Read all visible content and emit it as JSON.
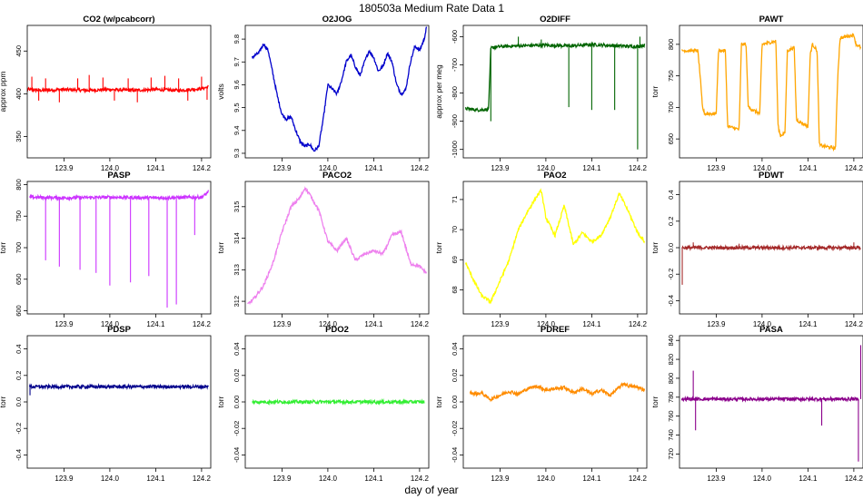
{
  "page": {
    "title": "180503a   Medium Rate Data 1",
    "xlabel": "day of year"
  },
  "chart_data": [
    {
      "type": "line",
      "title": "CO2 (w/pcabcorr)",
      "ylabel": "approx ppm",
      "color": "#ff0000",
      "xlim": [
        123.82,
        124.22
      ],
      "ylim": [
        325,
        480
      ],
      "xticks": [
        "123.9",
        "124.0",
        "124.1",
        "124.2"
      ],
      "yticks": [
        "350",
        "400",
        "450"
      ],
      "x": [
        123.82,
        123.85,
        123.9,
        123.95,
        124.0,
        124.05,
        124.1,
        124.15,
        124.2,
        124.215
      ],
      "y": [
        405,
        404,
        405,
        404,
        405,
        404,
        405,
        404,
        406,
        408
      ],
      "spikes": [
        [
          123.83,
          420
        ],
        [
          123.845,
          392
        ],
        [
          123.86,
          418
        ],
        [
          123.89,
          390
        ],
        [
          123.93,
          418
        ],
        [
          123.955,
          422
        ],
        [
          123.985,
          419
        ],
        [
          124.01,
          392
        ],
        [
          124.04,
          418
        ],
        [
          124.06,
          390
        ],
        [
          124.09,
          419
        ],
        [
          124.12,
          421
        ],
        [
          124.15,
          418
        ],
        [
          124.17,
          392
        ],
        [
          124.2,
          420
        ],
        [
          124.212,
          393
        ]
      ]
    },
    {
      "type": "line",
      "title": "O2JOG",
      "ylabel": "volts",
      "color": "#0000cc",
      "xlim": [
        123.82,
        124.22
      ],
      "ylim": [
        9.28,
        9.86
      ],
      "xticks": [
        "123.9",
        "124.0",
        "124.1",
        "124.2"
      ],
      "yticks": [
        "9.3",
        "9.4",
        "9.5",
        "9.6",
        "9.7",
        "9.8"
      ],
      "x": [
        123.835,
        123.85,
        123.86,
        123.87,
        123.88,
        123.89,
        123.9,
        123.91,
        123.92,
        123.93,
        123.94,
        123.95,
        123.96,
        123.97,
        123.98,
        123.99,
        124.0,
        124.01,
        124.02,
        124.03,
        124.04,
        124.05,
        124.06,
        124.07,
        124.08,
        124.09,
        124.1,
        124.11,
        124.12,
        124.13,
        124.14,
        124.15,
        124.16,
        124.17,
        124.18,
        124.19,
        124.2,
        124.21,
        124.215
      ],
      "y": [
        9.72,
        9.74,
        9.78,
        9.75,
        9.65,
        9.55,
        9.47,
        9.45,
        9.46,
        9.4,
        9.35,
        9.33,
        9.34,
        9.31,
        9.33,
        9.45,
        9.6,
        9.58,
        9.56,
        9.62,
        9.7,
        9.73,
        9.68,
        9.64,
        9.7,
        9.75,
        9.72,
        9.66,
        9.68,
        9.74,
        9.7,
        9.6,
        9.56,
        9.58,
        9.7,
        9.77,
        9.75,
        9.8,
        9.85
      ]
    },
    {
      "type": "line",
      "title": "O2DIFF",
      "ylabel": "approx per meg",
      "color": "#006400",
      "xlim": [
        123.82,
        124.22
      ],
      "ylim": [
        -1030,
        -560
      ],
      "xticks": [
        "123.9",
        "124.0",
        "124.1",
        "124.2"
      ],
      "yticks": [
        "-1000",
        "-900",
        "-800",
        "-700",
        "-600"
      ],
      "x": [
        123.825,
        123.85,
        123.875,
        123.88,
        123.9,
        123.95,
        124.0,
        124.05,
        124.1,
        124.15,
        124.2,
        124.215
      ],
      "y": [
        -855,
        -860,
        -858,
        -640,
        -635,
        -632,
        -630,
        -633,
        -628,
        -632,
        -635,
        -630
      ],
      "spikes": [
        [
          123.88,
          -900
        ],
        [
          123.94,
          -600
        ],
        [
          123.99,
          -610
        ],
        [
          124.05,
          -850
        ],
        [
          124.1,
          -860
        ],
        [
          124.15,
          -860
        ],
        [
          124.2,
          -1000
        ],
        [
          124.205,
          -600
        ]
      ]
    },
    {
      "type": "line",
      "title": "PAWT",
      "ylabel": "torr",
      "color": "#ffa500",
      "xlim": [
        123.82,
        124.22
      ],
      "ylim": [
        620,
        830
      ],
      "xticks": [
        "123.9",
        "124.0",
        "124.1",
        "124.2"
      ],
      "yticks": [
        "650",
        "700",
        "750",
        "800"
      ],
      "x": [
        123.825,
        123.86,
        123.865,
        123.87,
        123.875,
        123.9,
        123.905,
        123.92,
        123.925,
        123.95,
        123.955,
        123.965,
        123.97,
        123.995,
        124.0,
        124.03,
        124.035,
        124.04,
        124.05,
        124.055,
        124.07,
        124.075,
        124.1,
        124.105,
        124.11,
        124.12,
        124.125,
        124.16,
        124.165,
        124.17,
        124.2,
        124.205,
        124.215
      ],
      "y": [
        790,
        790,
        750,
        700,
        690,
        690,
        790,
        790,
        670,
        665,
        800,
        800,
        700,
        690,
        800,
        805,
        670,
        655,
        660,
        790,
        795,
        680,
        670,
        785,
        800,
        790,
        640,
        635,
        750,
        810,
        815,
        800,
        795
      ]
    },
    {
      "type": "line",
      "title": "PASP",
      "ylabel": "torr",
      "color": "#cc33ff",
      "xlim": [
        123.82,
        124.22
      ],
      "ylim": [
        595,
        805
      ],
      "xticks": [
        "123.9",
        "124.0",
        "124.1",
        "124.2"
      ],
      "yticks": [
        "600",
        "650",
        "700",
        "750",
        "800"
      ],
      "x": [
        123.825,
        123.9,
        124.0,
        124.1,
        124.2,
        124.21,
        124.215
      ],
      "y": [
        780,
        779,
        780,
        779,
        780,
        785,
        790
      ],
      "spikes": [
        [
          123.86,
          680
        ],
        [
          123.89,
          670
        ],
        [
          123.935,
          665
        ],
        [
          123.97,
          660
        ],
        [
          124.0,
          640
        ],
        [
          124.045,
          645
        ],
        [
          124.085,
          655
        ],
        [
          124.125,
          605
        ],
        [
          124.145,
          610
        ],
        [
          124.185,
          720
        ]
      ]
    },
    {
      "type": "line",
      "title": "PACO2",
      "ylabel": "torr",
      "color": "#ee82ee",
      "xlim": [
        123.82,
        124.22
      ],
      "ylim": [
        311.6,
        315.8
      ],
      "xticks": [
        "123.9",
        "124.0",
        "124.1",
        "124.2"
      ],
      "yticks": [
        "312",
        "313",
        "314",
        "315"
      ],
      "x": [
        123.825,
        123.84,
        123.86,
        123.88,
        123.9,
        123.92,
        123.94,
        123.95,
        123.96,
        123.98,
        124.0,
        124.02,
        124.04,
        124.06,
        124.08,
        124.1,
        124.12,
        124.14,
        124.16,
        124.18,
        124.2,
        124.215
      ],
      "y": [
        311.9,
        312.1,
        312.5,
        313.2,
        314.2,
        315.0,
        315.3,
        315.6,
        315.4,
        314.9,
        313.9,
        313.6,
        314.0,
        313.3,
        313.5,
        313.6,
        313.5,
        314.1,
        314.2,
        313.2,
        313.1,
        312.9
      ]
    },
    {
      "type": "line",
      "title": "PAO2",
      "ylabel": "torr",
      "color": "#ffff00",
      "xlim": [
        123.82,
        124.22
      ],
      "ylim": [
        67.2,
        71.6
      ],
      "xticks": [
        "123.9",
        "124.0",
        "124.1",
        "124.2"
      ],
      "yticks": [
        "68",
        "69",
        "70",
        "71"
      ],
      "x": [
        123.825,
        123.84,
        123.86,
        123.88,
        123.9,
        123.92,
        123.94,
        123.96,
        123.98,
        123.99,
        124.0,
        124.02,
        124.04,
        124.06,
        124.08,
        124.1,
        124.12,
        124.14,
        124.16,
        124.18,
        124.2,
        124.215
      ],
      "y": [
        68.9,
        68.4,
        67.8,
        67.6,
        68.3,
        69.0,
        70.0,
        70.6,
        71.1,
        71.3,
        70.4,
        69.8,
        70.8,
        69.5,
        69.9,
        69.6,
        69.8,
        70.4,
        71.2,
        70.6,
        69.9,
        69.6
      ]
    },
    {
      "type": "line",
      "title": "PDWT",
      "ylabel": "torr",
      "color": "#a52a2a",
      "xlim": [
        123.82,
        124.22
      ],
      "ylim": [
        -0.5,
        0.5
      ],
      "xticks": [
        "123.9",
        "124.0",
        "124.1",
        "124.2"
      ],
      "yticks": [
        "-0.4",
        "-0.2",
        "0.0",
        "0.2",
        "0.4"
      ],
      "x": [
        123.825,
        124.215
      ],
      "y": [
        0.0,
        0.0
      ],
      "spikes": [
        [
          123.826,
          -0.28
        ],
        [
          123.85,
          0.04
        ],
        [
          123.95,
          0.03
        ],
        [
          124.2,
          0.04
        ]
      ]
    },
    {
      "type": "line",
      "title": "PDSP",
      "ylabel": "torr",
      "color": "#00008b",
      "xlim": [
        123.82,
        124.22
      ],
      "ylim": [
        -0.5,
        0.5
      ],
      "xticks": [
        "123.9",
        "124.0",
        "124.1",
        "124.2"
      ],
      "yticks": [
        "-0.4",
        "-0.2",
        "0.0",
        "0.2",
        "0.4"
      ],
      "x": [
        123.825,
        124.215
      ],
      "y": [
        0.115,
        0.115
      ],
      "spikes": [
        [
          123.826,
          0.05
        ]
      ]
    },
    {
      "type": "line",
      "title": "PDO2",
      "ylabel": "torr",
      "color": "#33ee33",
      "xlim": [
        123.82,
        124.22
      ],
      "ylim": [
        -0.05,
        0.05
      ],
      "xticks": [
        "123.9",
        "124.0",
        "124.1",
        "124.2"
      ],
      "yticks": [
        "-0.04",
        "-0.02",
        "0.00",
        "0.02",
        "0.04"
      ],
      "x": [
        123.835,
        124.21
      ],
      "y": [
        0.0,
        0.0
      ]
    },
    {
      "type": "line",
      "title": "PDREF",
      "ylabel": "torr",
      "color": "#ff8c00",
      "xlim": [
        123.82,
        124.22
      ],
      "ylim": [
        -0.05,
        0.05
      ],
      "xticks": [
        "123.9",
        "124.0",
        "124.1",
        "124.2"
      ],
      "yticks": [
        "-0.04",
        "-0.02",
        "0.00",
        "0.02",
        "0.04"
      ],
      "x": [
        123.835,
        123.85,
        123.86,
        123.87,
        123.88,
        123.9,
        123.92,
        123.94,
        123.96,
        123.98,
        124.0,
        124.02,
        124.04,
        124.06,
        124.08,
        124.1,
        124.12,
        124.14,
        124.16,
        124.17,
        124.18,
        124.2,
        124.215
      ],
      "y": [
        0.007,
        0.006,
        0.007,
        0.004,
        0.002,
        0.005,
        0.008,
        0.006,
        0.01,
        0.012,
        0.009,
        0.01,
        0.011,
        0.007,
        0.01,
        0.006,
        0.009,
        0.005,
        0.011,
        0.014,
        0.012,
        0.011,
        0.009
      ]
    },
    {
      "type": "line",
      "title": "PASA",
      "ylabel": "torr",
      "color": "#8b008b",
      "xlim": [
        123.82,
        124.22
      ],
      "ylim": [
        705,
        845
      ],
      "xticks": [
        "123.9",
        "124.0",
        "124.1",
        "124.2"
      ],
      "yticks": [
        "720",
        "740",
        "760",
        "780",
        "800",
        "820",
        "840"
      ],
      "x": [
        123.825,
        124.21
      ],
      "y": [
        778,
        778
      ],
      "spikes": [
        [
          123.85,
          808
        ],
        [
          123.855,
          745
        ],
        [
          124.13,
          750
        ],
        [
          124.21,
          712
        ],
        [
          124.215,
          835
        ]
      ]
    }
  ]
}
